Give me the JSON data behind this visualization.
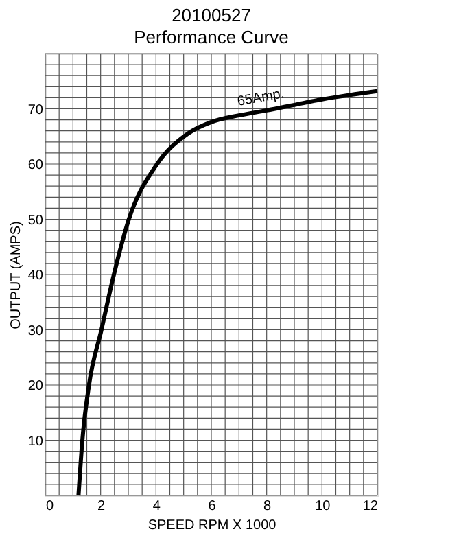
{
  "chart_data": {
    "type": "line",
    "title": "20100527",
    "subtitle": "Performance Curve",
    "xlabel": "SPEED  RPM  X  1000",
    "ylabel": "OUTPUT  (AMPS)",
    "x": [
      1.2,
      1.34,
      1.58,
      2.03,
      2.48,
      3.02,
      4.0,
      5.15,
      6.0,
      7.0,
      8.0,
      9.0,
      10.0,
      11.0,
      12.0
    ],
    "series": [
      {
        "color": "#000000",
        "values": [
          0,
          10,
          20,
          30,
          40,
          50,
          59.7,
          65.5,
          67.6,
          68.8,
          69.7,
          70.7,
          71.7,
          72.5,
          73.2
        ]
      }
    ],
    "annotations": [
      "65Amp."
    ],
    "xlim": [
      0,
      12
    ],
    "xticks": [
      0,
      2,
      4,
      6,
      8,
      10,
      12
    ],
    "ylim": [
      0,
      80
    ],
    "yticks": [
      10,
      20,
      30,
      40,
      50,
      60,
      70
    ],
    "grid": true,
    "marker": "none",
    "line_style": "solid"
  }
}
